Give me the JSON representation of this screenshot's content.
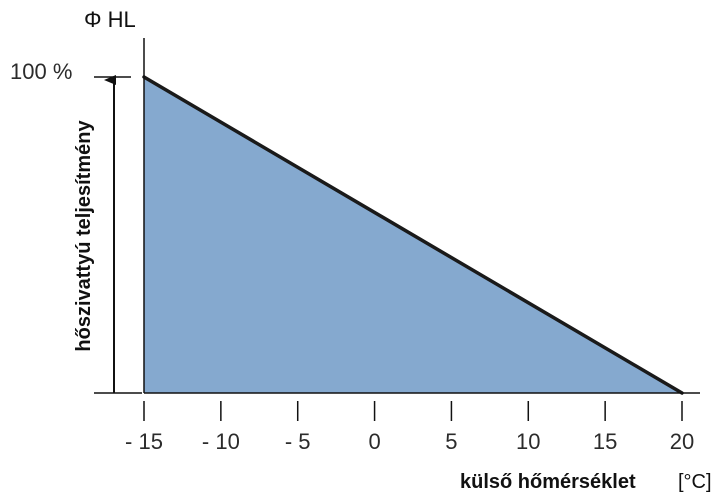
{
  "chart_data": {
    "type": "area",
    "y_title": "Φ HL",
    "ylabel": "hőszivattyú teljesítmény",
    "xlabel": "külső hőmérséklet",
    "xunit": "[°C]",
    "y_max_label": "100 %",
    "x_ticks": [
      {
        "value": -15,
        "label": "- 15"
      },
      {
        "value": -10,
        "label": "- 10"
      },
      {
        "value": -5,
        "label": "- 5"
      },
      {
        "value": 0,
        "label": "0"
      },
      {
        "value": 5,
        "label": "5"
      },
      {
        "value": 10,
        "label": "10"
      },
      {
        "value": 15,
        "label": "15"
      },
      {
        "value": 20,
        "label": "20"
      }
    ],
    "xlim": [
      -15,
      20
    ],
    "ylim": [
      0,
      100
    ],
    "series": [
      {
        "x": [
          -15,
          20
        ],
        "y": [
          100,
          0
        ]
      }
    ],
    "fill_color": "#85a9cf",
    "line_color": "#1a1a1a"
  }
}
